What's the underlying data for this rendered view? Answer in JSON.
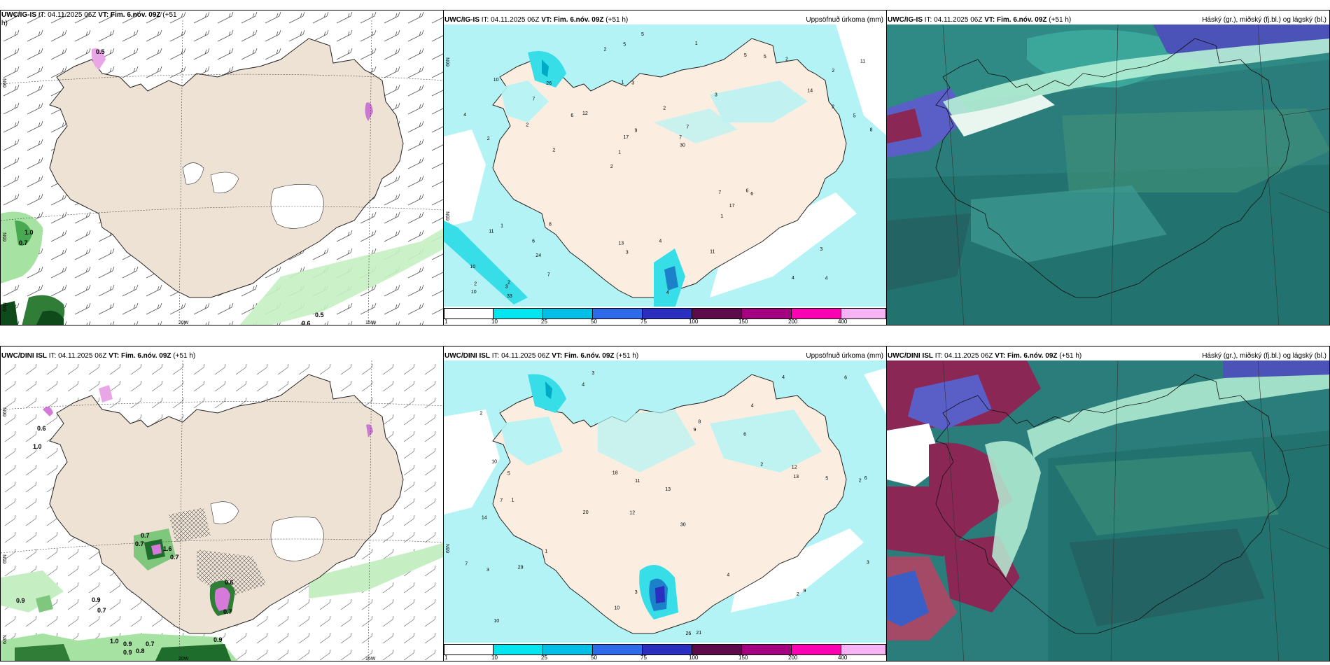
{
  "colors": {
    "land": "#eee2d4",
    "sea": "#ffffff",
    "precip_light": "#b3f3f5",
    "precip_mid": "#37dde7",
    "cloud_high": "#2b9a8d",
    "cloud_mid": "#1f6f6b",
    "cloud_low": "#8a2755",
    "cloud_blue": "#5a5fc8"
  },
  "panels": {
    "top_left": {
      "model": "UWC/IG-IS",
      "title_rest_a": " IT: 04.11.2025 06Z ",
      "vt": "VT: Fim. 6.nóv. 09Z",
      "lead": " (+51",
      "lead2": "h)",
      "lat_labels": [
        "66N",
        "65N",
        "63N"
      ],
      "lon_labels": [
        "20W",
        "15W"
      ],
      "values": [
        "0.5",
        "1.0",
        "0.7",
        "0.5",
        "0.6"
      ]
    },
    "top_mid": {
      "model": "UWC/IG-IS",
      "title_rest_a": " IT: 04.11.2025 06Z ",
      "vt": "VT: Fim. 6.nóv. 09Z",
      "lead": " (+51 h)",
      "right_title": "Uppsöfnuð úrkoma (mm)",
      "lat_labels": [
        "66N",
        "65N"
      ]
    },
    "top_right": {
      "model": "UWC/IG-IS",
      "title_rest_a": " IT: 04.11.2025 06Z ",
      "vt": "VT: Fim. 6.nóv. 09Z",
      "lead": " (+51 h)",
      "right_title": "Háský (gr.), miðský (fj.bl.) og lágský (bl.)"
    },
    "bot_left": {
      "model": "UWC/DINI ISL",
      "title_rest_a": " IT: 04.11.2025 06Z ",
      "vt": "VT: Fim. 6.nóv. 09Z",
      "lead": " (+51 h)",
      "lat_labels": [
        "66N",
        "65N",
        "63N"
      ],
      "lon_labels": [
        "20W",
        "15W"
      ],
      "values": [
        "0.6",
        "1.0",
        "0.7",
        "0.7",
        "1.6",
        "0.7",
        "0.6",
        "0.7",
        "0.9",
        "0.9",
        "0.7",
        "1.0",
        "0.9",
        "0.7",
        "0.9",
        "0.8",
        "0.9"
      ]
    },
    "bot_mid": {
      "model": "UWC/DINI ISL",
      "title_rest_a": " IT: 04.11.2025 06Z ",
      "vt": "VT: Fim. 6.nóv. 09Z",
      "lead": " (+51 h)",
      "right_title": "Uppsöfnuð úrkoma (mm)",
      "lat_labels": [
        "65N"
      ]
    },
    "bot_right": {
      "model": "UWC/DINI ISL",
      "title_rest_a": " IT: 04.11.2025 06Z ",
      "vt": "VT: Fim. 6.nóv. 09Z",
      "lead": " (+51 h)",
      "right_title": "Háský (gr.), miðský (fj.bl.) og lágský (bl.)"
    }
  },
  "colorbar": {
    "labels": [
      "1",
      "10",
      "25",
      "50",
      "75",
      "100",
      "150",
      "200",
      "400"
    ],
    "colors": [
      "#ffffff",
      "#00e5ee",
      "#00bfe6",
      "#2e6bea",
      "#2a2fc0",
      "#5c0a4a",
      "#a4007f",
      "#ff00b4",
      "#f6b4f6"
    ]
  },
  "precip_numbers_top": [
    "4",
    "2",
    "2",
    "2",
    "3",
    "2",
    "1",
    "2",
    "1",
    "12",
    "10",
    "24",
    "3",
    "7",
    "6",
    "10",
    "5",
    "8",
    "7",
    "2",
    "1",
    "13",
    "17",
    "26",
    "5",
    "8",
    "4",
    "3",
    "6",
    "4",
    "6",
    "2",
    "1",
    "7",
    "5",
    "7",
    "2",
    "3",
    "30",
    "11",
    "14",
    "11",
    "17",
    "11",
    "6",
    "33",
    "10",
    "4",
    "2",
    "5",
    "2",
    "4",
    "7",
    "5",
    "3",
    "1",
    "2",
    "9"
  ],
  "precip_numbers_bot": [
    "3",
    "4",
    "2",
    "12",
    "30",
    "1",
    "2",
    "6",
    "14",
    "9",
    "13",
    "10",
    "4",
    "20",
    "26",
    "21",
    "3",
    "4",
    "2",
    "1",
    "5",
    "7",
    "6",
    "5",
    "7",
    "10",
    "11",
    "13",
    "9",
    "3",
    "2",
    "8",
    "29",
    "18",
    "4",
    "3",
    "12",
    "10",
    "6"
  ]
}
